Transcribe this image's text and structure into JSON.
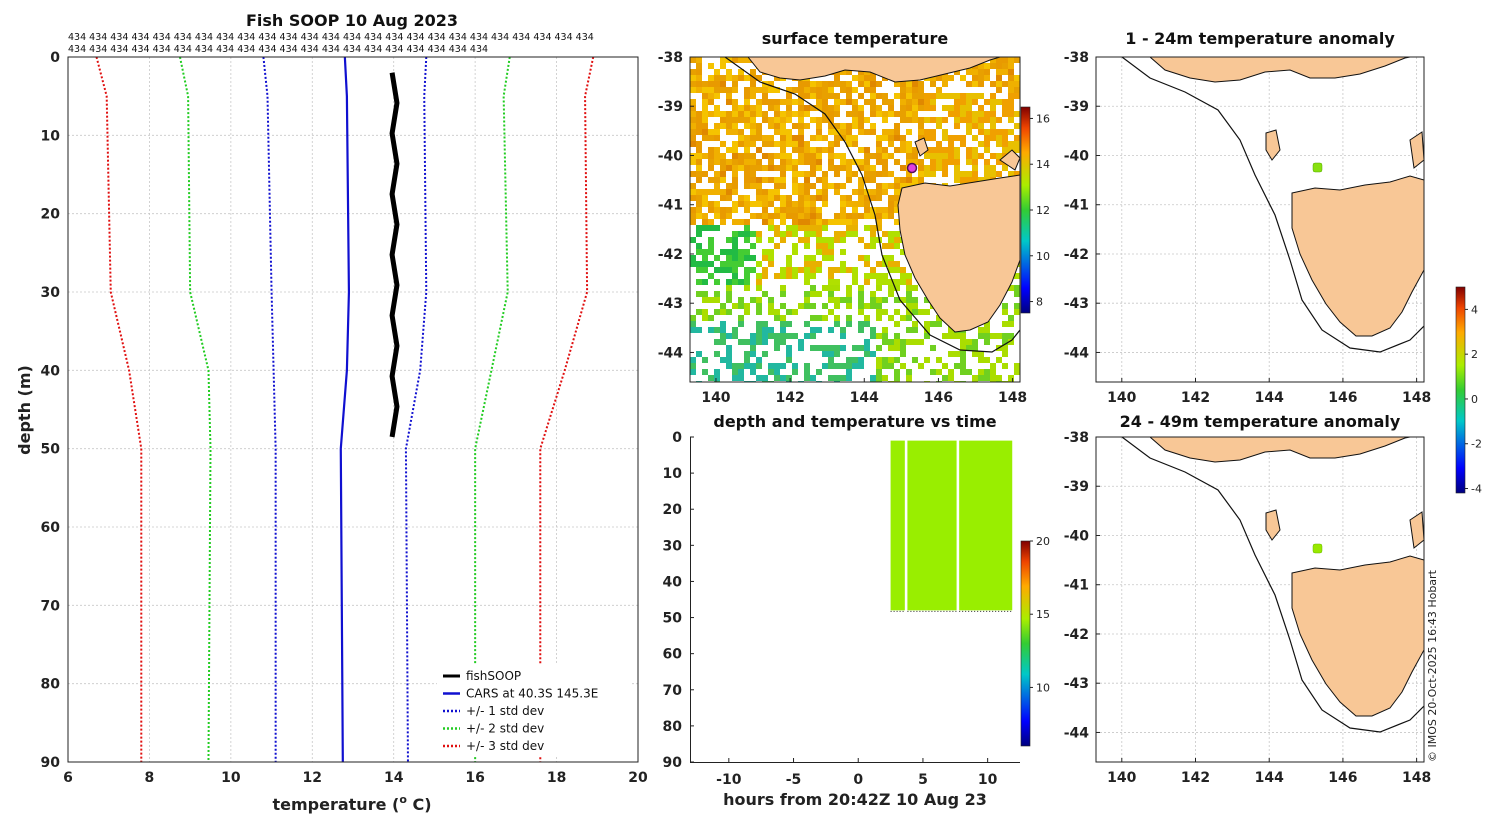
{
  "profile": {
    "title": "Fish SOOP 10 Aug 2023",
    "counts_row1": "434 434 434 434 434 434 434 434 434 434 434 434 434 434 434 434 434 434 434 434 434 434 434 434 434",
    "counts_row2": "434 434 434 434 434 434 434 434 434 434 434 434 434 434 434 434 434 434 434 434",
    "xlabel": "temperature (",
    "xlabel_sup": "o",
    "xlabel_end": " C)",
    "ylabel": "depth (m)",
    "legend": [
      "fishSOOP",
      "CARS at 40.3S 145.3E",
      "+/- 1 std dev",
      "+/- 2 std dev",
      "+/- 3 std dev"
    ],
    "legend_colors": [
      "#000000",
      "#1010d0",
      "#1010d0",
      "#22cc22",
      "#e01010"
    ]
  },
  "sst": {
    "title": "surface temperature",
    "colorbar_ticks": [
      "16",
      "14",
      "12",
      "10",
      "8"
    ]
  },
  "timeplot": {
    "title": "depth and temperature vs time",
    "xlabel": "hours from 20:42Z 10 Aug 23",
    "colorbar_ticks": [
      "20",
      "15",
      "10"
    ]
  },
  "anom1": {
    "title": "1 - 24m temperature anomaly"
  },
  "anom2": {
    "title": "24 - 49m temperature anomaly"
  },
  "anomaly_colorbar_ticks": [
    "4",
    "2",
    "0",
    "-2",
    "-4"
  ],
  "map_lat_ticks": [
    "-38",
    "-39",
    "-40",
    "-41",
    "-42",
    "-43",
    "-44"
  ],
  "map_lon_ticks": [
    "140",
    "142",
    "144",
    "146",
    "148"
  ],
  "credit": "© IMOS 20-Oct-2025 16:43 Hobart",
  "chart_data": [
    {
      "type": "line",
      "title": "Fish SOOP 10 Aug 2023",
      "xlabel": "temperature (o C)",
      "ylabel": "depth (m)",
      "xlim": [
        6,
        20
      ],
      "ylim": [
        0,
        90
      ],
      "x_ticks": [
        6,
        8,
        10,
        12,
        14,
        16,
        18,
        20
      ],
      "y_ticks": [
        0,
        10,
        20,
        30,
        40,
        50,
        60,
        70,
        80,
        90
      ],
      "series": [
        {
          "name": "CARS at 40.3S 145.3E",
          "depth": [
            0,
            5,
            30,
            40,
            50,
            90
          ],
          "temp": [
            12.8,
            12.85,
            12.9,
            12.85,
            12.7,
            12.75
          ]
        },
        {
          "name": "+/- 1 std dev (upper)",
          "depth": [
            0,
            5,
            30,
            40,
            50,
            90
          ],
          "temp": [
            14.8,
            14.75,
            14.8,
            14.65,
            14.3,
            14.35
          ]
        },
        {
          "name": "+/- 1 std dev (lower)",
          "depth": [
            0,
            5,
            30,
            40,
            50,
            90
          ],
          "temp": [
            10.8,
            10.9,
            11.0,
            11.05,
            11.1,
            11.1
          ]
        },
        {
          "name": "+/- 2 std dev (upper)",
          "depth": [
            0,
            5,
            30,
            40,
            50,
            90
          ],
          "temp": [
            16.85,
            16.7,
            16.8,
            16.4,
            16.0,
            16.0
          ]
        },
        {
          "name": "+/- 2 std dev (lower)",
          "depth": [
            0,
            5,
            30,
            40,
            50,
            90
          ],
          "temp": [
            8.75,
            8.95,
            9.0,
            9.45,
            9.5,
            9.45
          ]
        },
        {
          "name": "+/- 3 std dev (upper)",
          "depth": [
            0,
            5,
            30,
            40,
            50,
            90
          ],
          "temp": [
            18.9,
            18.7,
            18.75,
            18.2,
            17.6,
            17.6
          ]
        },
        {
          "name": "+/- 3 std dev (lower)",
          "depth": [
            0,
            5,
            30,
            40,
            50,
            90
          ],
          "temp": [
            6.7,
            6.95,
            7.05,
            7.5,
            7.8,
            7.8
          ]
        },
        {
          "name": "fishSOOP",
          "depth": [
            2,
            48.5
          ],
          "temp_range": [
            13.9,
            14.1
          ]
        }
      ]
    },
    {
      "type": "heatmap",
      "title": "surface temperature",
      "xlim": [
        139.3,
        148.2
      ],
      "ylim": [
        -44.6,
        -38
      ],
      "colorbar": {
        "min": 7.5,
        "max": 16.5,
        "ticks": [
          16,
          14,
          12,
          10,
          8
        ]
      }
    },
    {
      "type": "scatter",
      "title": "depth and temperature vs time",
      "xlabel": "hours from 20:42Z 10 Aug 23",
      "xlim": [
        -13,
        12.5
      ],
      "ylim": [
        0,
        90
      ],
      "x_ticks": [
        -10,
        -5,
        0,
        5,
        10
      ],
      "y_ticks": [
        0,
        10,
        20,
        30,
        40,
        50,
        60,
        70,
        80,
        90
      ],
      "segments_hours": [
        [
          2.5,
          3.6
        ],
        [
          3.8,
          7.6
        ],
        [
          7.8,
          11.9
        ]
      ],
      "depth_range": [
        1,
        48
      ],
      "temperature": 14,
      "colorbar": {
        "min": 6,
        "max": 20,
        "ticks": [
          20,
          15,
          10
        ]
      }
    },
    {
      "type": "scatter",
      "title": "1 - 24m temperature anomaly",
      "xlim": [
        139.3,
        148.2
      ],
      "ylim": [
        -44.6,
        -38
      ],
      "points": [
        {
          "lon": 145.3,
          "lat": -40.3,
          "anomaly": 0.9
        }
      ]
    },
    {
      "type": "scatter",
      "title": "24 - 49m temperature anomaly",
      "xlim": [
        139.3,
        148.2
      ],
      "ylim": [
        -44.6,
        -38
      ],
      "points": [
        {
          "lon": 145.3,
          "lat": -40.3,
          "anomaly": 1.0
        }
      ],
      "colorbar": {
        "min": -4.2,
        "max": 5,
        "ticks": [
          4,
          2,
          0,
          -2,
          -4
        ]
      }
    }
  ]
}
